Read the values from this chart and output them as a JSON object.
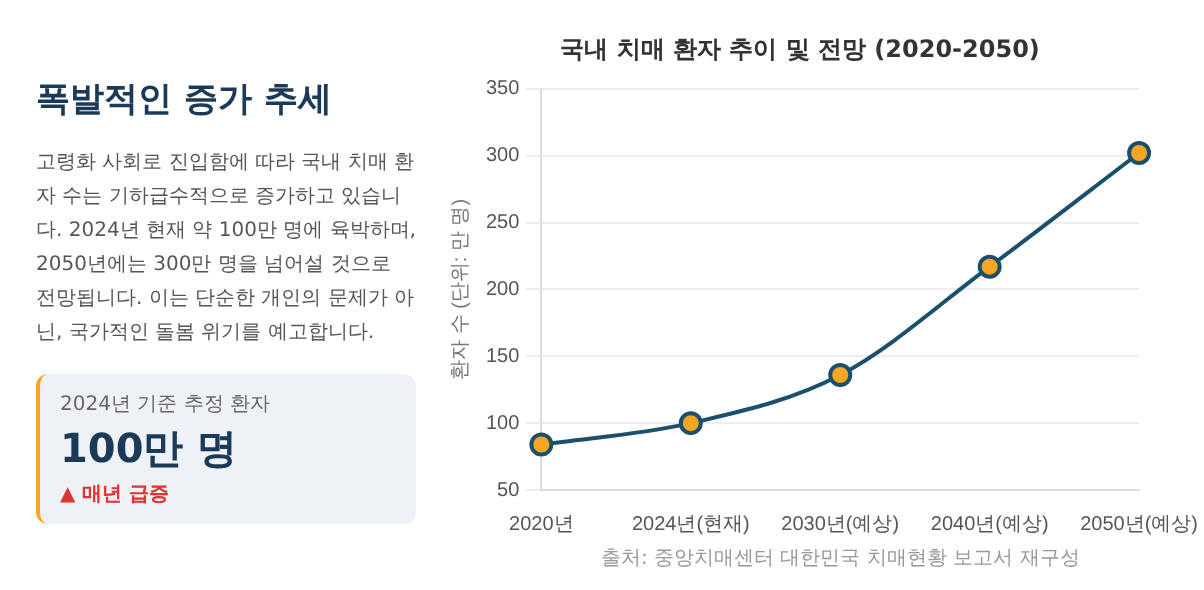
{
  "chart_data": {
    "type": "line",
    "title": "국내 치매 환자 추이 및 전망 (2020-2050)",
    "ylabel": "환자 수 (단위: 만 명)",
    "categories": [
      "2020년",
      "2024년(현재)",
      "2030년(예상)",
      "2040년(예상)",
      "2050년(예상)"
    ],
    "series": [
      {
        "color": "#1b4f6b",
        "values": [
          84,
          100,
          136,
          217,
          302
        ]
      }
    ],
    "ylim": [
      50,
      350
    ],
    "yticks": [
      50,
      100,
      150,
      200,
      250,
      300,
      350
    ],
    "grid": "y",
    "legend": false,
    "marker": "circle",
    "line_style": "solid",
    "annotations": [
      "폭발적인 증가 추세",
      "고령화 사회로 진입함에 따라 국내 치매 환자 수는 기하급수적으로 증가하고 있습니다. 2024년 현재 약 100만 명에 육박하며, 2050년에는 300만 명을 넘어설 것으로 전망됩니다. 이는 단순한 개인의 문제가 아닌, 국가적인 돌봄 위기를 예고합니다.",
      "2024년 기준 추정 환자",
      "100만 명",
      "▲ 매년 급증",
      "출처: 중앙치매센터 대한민국 치매현황 보고서 재구성"
    ]
  }
}
